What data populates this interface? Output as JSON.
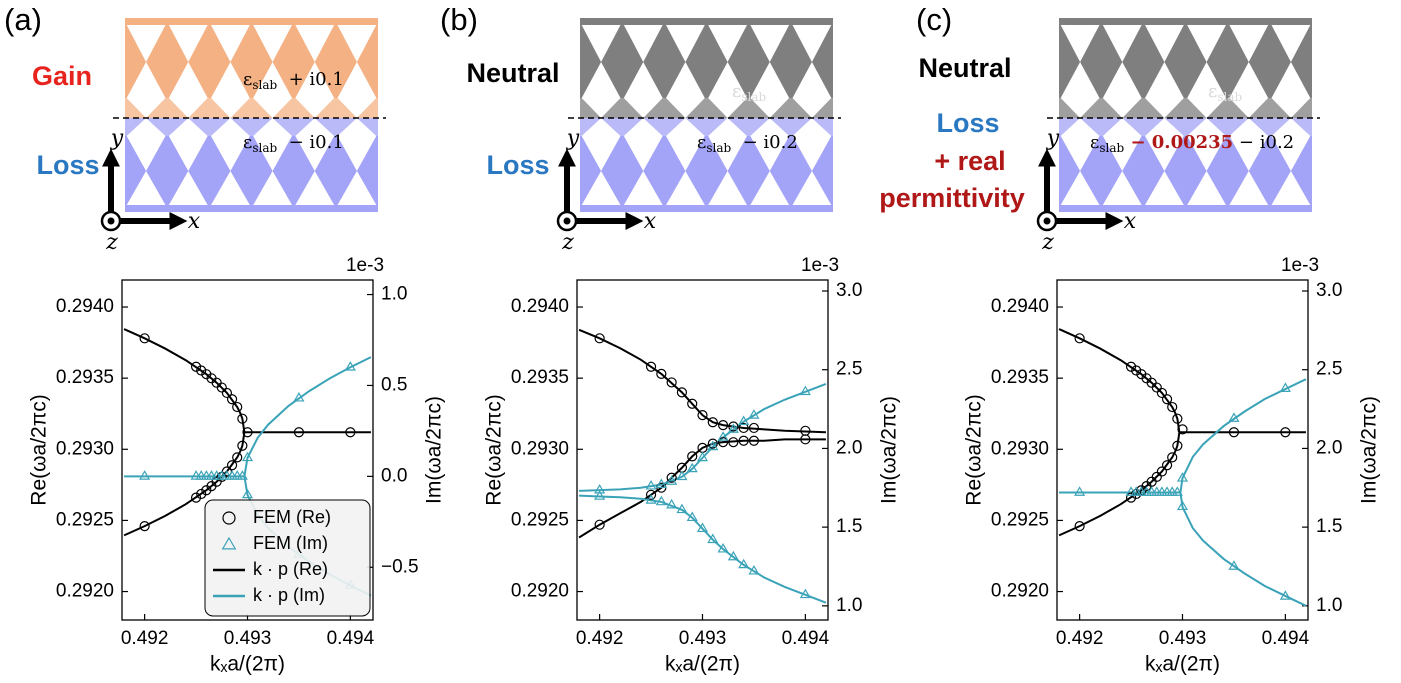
{
  "chart_data": [
    {
      "type": "line",
      "panel_label": "(a)",
      "schematic": {
        "upper_color": "#f4b183",
        "lower_color": "#a3a3f7",
        "labels": [
          {
            "text": "Gain",
            "color": "#e8231e"
          },
          {
            "text": "Loss",
            "color": "#2a78c2"
          }
        ],
        "permittivity": [
          [
            {
              "text": "ε",
              "color": "#000000"
            },
            {
              "text": "slab",
              "color": "#000000",
              "sub": true
            },
            {
              "text": "  + i0.1",
              "color": "#000000"
            }
          ],
          [
            {
              "text": "ε",
              "color": "#000000"
            },
            {
              "text": "slab",
              "color": "#000000",
              "sub": true
            },
            {
              "text": "  − i0.1",
              "color": "#000000"
            }
          ]
        ],
        "coordinate_labels": [
          "y",
          "x",
          "z"
        ]
      },
      "x_label": "kₓa/(2π)",
      "y_label": "Re(ωa/2πc)",
      "y2_label": "Im(ωa/2πc)",
      "y2_offset_label": "1e-3",
      "xlim": [
        0.49178,
        0.49422
      ],
      "xticks": [
        0.492,
        0.493,
        0.494
      ],
      "ylim": [
        0.2918,
        0.29419
      ],
      "yticks": [
        {
          "value": 0.292,
          "label": "0.2920"
        },
        0.2925,
        {
          "value": 0.293,
          "label": "0.2930"
        },
        0.2935,
        {
          "value": 0.294,
          "label": "0.2940"
        }
      ],
      "y2lim": [
        -0.79,
        1.08
      ],
      "y2ticks": [
        {
          "value": -0.5,
          "label": "−0.5"
        },
        {
          "value": 0,
          "label": "0.0"
        },
        0.5,
        {
          "value": 1,
          "label": "1.0"
        }
      ],
      "legend": "lower center",
      "series": [
        {
          "name": "FEM (Re)",
          "color": "#000000",
          "marker": "circle",
          "x": [
            0.492,
            0.4925,
            0.49255,
            0.4926,
            0.49265,
            0.4927,
            0.49275,
            0.4928,
            0.49285,
            0.4929,
            0.49295,
            0.492,
            0.4925,
            0.49255,
            0.4926,
            0.49265,
            0.4927,
            0.49275,
            0.4928,
            0.49285,
            0.4929,
            0.49295,
            0.493,
            0.4935,
            0.494
          ],
          "values": [
            0.29378,
            0.29358,
            0.293554,
            0.293528,
            0.293499,
            0.293468,
            0.293434,
            0.293396,
            0.293352,
            0.293297,
            0.293215,
            0.29246,
            0.29266,
            0.292686,
            0.292712,
            0.292741,
            0.292772,
            0.292806,
            0.292844,
            0.292888,
            0.292943,
            0.293025,
            0.29312,
            0.29312,
            0.29312
          ]
        },
        {
          "name": "FEM (Im)",
          "color": "#3ba3b8",
          "marker": "triangle",
          "axis": "y2",
          "x": [
            0.492,
            0.4925,
            0.49255,
            0.4926,
            0.49265,
            0.4927,
            0.49275,
            0.4928,
            0.49285,
            0.4929,
            0.49295,
            0.493,
            0.493,
            0.4935,
            0.4935,
            0.494,
            0.494
          ],
          "values": [
            0,
            0,
            0,
            0,
            0,
            0,
            0,
            0,
            0,
            0,
            0,
            0.102,
            -0.102,
            0.43,
            -0.43,
            0.6,
            -0.6
          ]
        },
        {
          "name": "k · p (Re)",
          "color": "#000000",
          "marker": "none",
          "x": [
            0.4918,
            0.492,
            0.4922,
            0.4924,
            0.4926,
            0.4927,
            0.4928,
            0.4929,
            0.49293,
            0.49295,
            0.49297,
            0.4942,
            0.4942,
            0.4918,
            0.492,
            0.4922,
            0.4924,
            0.4926,
            0.4927,
            0.4928,
            0.4929,
            0.49293,
            0.49295,
            0.49297
          ],
          "values": [
            0.293845,
            0.29378,
            0.293708,
            0.293626,
            0.293528,
            0.293468,
            0.293396,
            0.293297,
            0.293254,
            0.293215,
            0.29312,
            0.29312,
            null,
            0.292395,
            0.29246,
            0.292532,
            0.292614,
            0.292712,
            0.292772,
            0.292844,
            0.292943,
            0.292986,
            0.293025,
            0.29312
          ]
        },
        {
          "name": "k · p (Im)",
          "color": "#3ba3b8",
          "marker": "none",
          "axis": "y2",
          "x": [
            0.4918,
            0.49297,
            0.493,
            0.4931,
            0.4932,
            0.4934,
            0.4936,
            0.4938,
            0.494,
            0.4942,
            0.4942,
            0.49297,
            0.493,
            0.4931,
            0.4932,
            0.4934,
            0.4936,
            0.4938,
            0.494,
            0.4942
          ],
          "values": [
            0,
            0,
            0.102,
            0.213,
            0.284,
            0.388,
            0.469,
            0.539,
            0.6,
            0.656,
            null,
            0,
            -0.102,
            -0.213,
            -0.284,
            -0.388,
            -0.469,
            -0.539,
            -0.6,
            -0.656
          ]
        }
      ]
    },
    {
      "type": "line",
      "panel_label": "(b)",
      "schematic": {
        "upper_color": "#7f7f7f",
        "lower_color": "#a3a3f7",
        "labels": [
          {
            "text": "Neutral",
            "color": "#000000"
          },
          {
            "text": "Loss",
            "color": "#2a78c2"
          }
        ],
        "permittivity": [
          [
            {
              "text": "ε",
              "color": "#d9d9d9"
            },
            {
              "text": "slab",
              "color": "#d9d9d9",
              "sub": true
            }
          ],
          [
            {
              "text": "ε",
              "color": "#000000"
            },
            {
              "text": "slab",
              "color": "#000000",
              "sub": true
            },
            {
              "text": "  − i0.2",
              "color": "#000000"
            }
          ]
        ],
        "coordinate_labels": [
          "y",
          "x",
          "z"
        ]
      },
      "x_label": "kₓa/(2π)",
      "y_label": "Re(ωa/2πc)",
      "y2_label": "Im(ωa/2πc)",
      "y2_offset_label": "1e-3",
      "xlim": [
        0.49178,
        0.49422
      ],
      "xticks": [
        0.492,
        0.493,
        0.494
      ],
      "ylim": [
        0.2918,
        0.29419
      ],
      "yticks": [
        {
          "value": 0.292,
          "label": "0.2920"
        },
        0.2925,
        {
          "value": 0.293,
          "label": "0.2930"
        },
        0.2935,
        {
          "value": 0.294,
          "label": "0.2940"
        }
      ],
      "y2lim": [
        0.91,
        3.07
      ],
      "y2ticks": [
        {
          "value": 1,
          "label": "1.0"
        },
        1.5,
        {
          "value": 2,
          "label": "2.0"
        },
        2.5,
        {
          "value": 3,
          "label": "3.0"
        }
      ],
      "series": [
        {
          "color": "#000000",
          "marker": "circle",
          "x": [
            0.492,
            0.4925,
            0.4926,
            0.4927,
            0.4928,
            0.4929,
            0.493,
            0.4931,
            0.4932,
            0.4933,
            0.4934,
            0.4935,
            0.494,
            0.492,
            0.4925,
            0.4926,
            0.4927,
            0.4928,
            0.4929,
            0.493,
            0.4931,
            0.4932,
            0.4933,
            0.4934,
            0.4935,
            0.494
          ],
          "values": [
            0.29378,
            0.29358,
            0.29353,
            0.29347,
            0.2934,
            0.29332,
            0.29324,
            0.29319,
            0.29317,
            0.29316,
            0.29315,
            0.29315,
            0.29313,
            0.29247,
            0.29268,
            0.29273,
            0.2928,
            0.29287,
            0.29295,
            0.29301,
            0.29304,
            0.29305,
            0.29305,
            0.29306,
            0.29306,
            0.29307
          ]
        },
        {
          "color": "#3ba3b8",
          "marker": "triangle",
          "axis": "y2",
          "x": [
            0.492,
            0.4925,
            0.4926,
            0.4927,
            0.4928,
            0.4929,
            0.493,
            0.4931,
            0.4932,
            0.4933,
            0.4934,
            0.4935,
            0.494,
            0.492,
            0.4925,
            0.4926,
            0.4927,
            0.4928,
            0.4929,
            0.493,
            0.4931,
            0.4932,
            0.4933,
            0.4934,
            0.4935,
            0.494
          ],
          "values": [
            1.735,
            1.76,
            1.77,
            1.79,
            1.82,
            1.87,
            1.94,
            2.01,
            2.07,
            2.12,
            2.17,
            2.21,
            2.36,
            1.695,
            1.67,
            1.66,
            1.64,
            1.61,
            1.56,
            1.49,
            1.42,
            1.36,
            1.31,
            1.26,
            1.22,
            1.07
          ]
        },
        {
          "color": "#000000",
          "marker": "none",
          "x": [
            0.4918,
            0.492,
            0.4922,
            0.4924,
            0.4926,
            0.4928,
            0.4929,
            0.493,
            0.4931,
            0.4932,
            0.4934,
            0.4936,
            0.4938,
            0.4942,
            0.4942,
            0.4918,
            0.492,
            0.4922,
            0.4924,
            0.4926,
            0.4928,
            0.4929,
            0.493,
            0.4931,
            0.4932,
            0.4934,
            0.4936,
            0.4938,
            0.4942
          ],
          "values": [
            0.29384,
            0.29378,
            0.29371,
            0.29363,
            0.29353,
            0.2934,
            0.29332,
            0.29324,
            0.29319,
            0.29317,
            0.29315,
            0.29314,
            0.29313,
            0.29312,
            null,
            0.29238,
            0.29247,
            0.29255,
            0.29263,
            0.29273,
            0.29287,
            0.29295,
            0.29301,
            0.29304,
            0.29305,
            0.29306,
            0.29306,
            0.29307,
            0.29307
          ]
        },
        {
          "color": "#3ba3b8",
          "marker": "none",
          "axis": "y2",
          "x": [
            0.4918,
            0.492,
            0.4922,
            0.4924,
            0.4926,
            0.4928,
            0.4929,
            0.493,
            0.4931,
            0.4932,
            0.4934,
            0.4936,
            0.4938,
            0.494,
            0.4942,
            0.4942,
            0.4918,
            0.492,
            0.4922,
            0.4924,
            0.4926,
            0.4928,
            0.4929,
            0.493,
            0.4931,
            0.4932,
            0.4934,
            0.4936,
            0.4938,
            0.494,
            0.4942
          ],
          "values": [
            1.73,
            1.735,
            1.74,
            1.75,
            1.77,
            1.82,
            1.87,
            1.94,
            2.01,
            2.07,
            2.17,
            2.25,
            2.31,
            2.36,
            2.41,
            null,
            1.7,
            1.695,
            1.69,
            1.68,
            1.66,
            1.61,
            1.56,
            1.49,
            1.42,
            1.36,
            1.26,
            1.18,
            1.12,
            1.07,
            1.02
          ]
        }
      ]
    },
    {
      "type": "line",
      "panel_label": "(c)",
      "schematic": {
        "upper_color": "#7f7f7f",
        "lower_color": "#a3a3f7",
        "labels": [
          {
            "text": "Neutral",
            "color": "#000000"
          },
          {
            "text": "Loss",
            "color": "#2a78c2"
          },
          {
            "text": "+ real",
            "color": "#b01818"
          },
          {
            "text": "permittivity",
            "color": "#b01818"
          }
        ],
        "permittivity": [
          [
            {
              "text": "ε",
              "color": "#d9d9d9"
            },
            {
              "text": "slab",
              "color": "#d9d9d9",
              "sub": true
            }
          ],
          [
            {
              "text": "ε",
              "color": "#000000"
            },
            {
              "text": "slab",
              "color": "#000000",
              "sub": true
            },
            {
              "text": " − 0.00235",
              "color": "#b01818",
              "bold": true
            },
            {
              "text": " − i0.2",
              "color": "#000000"
            }
          ]
        ],
        "coordinate_labels": [
          "y",
          "x",
          "z"
        ]
      },
      "x_label": "kₓa/(2π)",
      "y_label": "Re(ωa/2πc)",
      "y2_label": "Im(ωa/2πc)",
      "y2_offset_label": "1e-3",
      "xlim": [
        0.49178,
        0.49422
      ],
      "xticks": [
        0.492,
        0.493,
        0.494
      ],
      "ylim": [
        0.2918,
        0.29419
      ],
      "yticks": [
        {
          "value": 0.292,
          "label": "0.2920"
        },
        0.2925,
        {
          "value": 0.293,
          "label": "0.2930"
        },
        0.2935,
        {
          "value": 0.294,
          "label": "0.2940"
        }
      ],
      "y2lim": [
        0.91,
        3.07
      ],
      "y2ticks": [
        {
          "value": 1,
          "label": "1.0"
        },
        1.5,
        {
          "value": 2,
          "label": "2.0"
        },
        2.5,
        {
          "value": 3,
          "label": "3.0"
        }
      ],
      "series": [
        {
          "color": "#000000",
          "marker": "circle",
          "x": [
            0.492,
            0.4925,
            0.49255,
            0.4926,
            0.49265,
            0.4927,
            0.49275,
            0.4928,
            0.49285,
            0.4929,
            0.49295,
            0.492,
            0.4925,
            0.49255,
            0.4926,
            0.49265,
            0.4927,
            0.49275,
            0.4928,
            0.49285,
            0.4929,
            0.49295,
            0.493,
            0.4935,
            0.494
          ],
          "values": [
            0.29378,
            0.29358,
            0.293554,
            0.293528,
            0.293499,
            0.293468,
            0.293434,
            0.293396,
            0.293352,
            0.293297,
            0.293215,
            0.29246,
            0.29266,
            0.292686,
            0.292712,
            0.292741,
            0.292772,
            0.292806,
            0.292844,
            0.292888,
            0.292943,
            0.293025,
            0.29314,
            0.29312,
            0.29312
          ]
        },
        {
          "color": "#3ba3b8",
          "marker": "triangle",
          "axis": "y2",
          "x": [
            0.492,
            0.4925,
            0.49255,
            0.4926,
            0.49265,
            0.4927,
            0.49275,
            0.4928,
            0.49285,
            0.4929,
            0.49295,
            0.493,
            0.493,
            0.4935,
            0.4935,
            0.494,
            0.494
          ],
          "values": [
            1.72,
            1.72,
            1.72,
            1.72,
            1.72,
            1.72,
            1.72,
            1.72,
            1.72,
            1.72,
            1.72,
            1.81,
            1.63,
            2.19,
            1.25,
            2.38,
            1.06
          ]
        },
        {
          "color": "#000000",
          "marker": "none",
          "x": [
            0.4918,
            0.492,
            0.4922,
            0.4924,
            0.4926,
            0.4927,
            0.4928,
            0.4929,
            0.49293,
            0.49295,
            0.49297,
            0.4942,
            0.4942,
            0.4918,
            0.492,
            0.4922,
            0.4924,
            0.4926,
            0.4927,
            0.4928,
            0.4929,
            0.49293,
            0.49295,
            0.49297
          ],
          "values": [
            0.293845,
            0.29378,
            0.293708,
            0.293626,
            0.293528,
            0.293468,
            0.293396,
            0.293297,
            0.293254,
            0.293215,
            0.29312,
            0.29312,
            null,
            0.292395,
            0.29246,
            0.292532,
            0.292614,
            0.292712,
            0.292772,
            0.292844,
            0.292943,
            0.292986,
            0.293025,
            0.29312
          ]
        },
        {
          "color": "#3ba3b8",
          "marker": "none",
          "axis": "y2",
          "x": [
            0.4918,
            0.49298,
            0.493,
            0.4931,
            0.4932,
            0.4934,
            0.4936,
            0.4938,
            0.494,
            0.4942,
            0.4942,
            0.49298,
            0.493,
            0.4931,
            0.4932,
            0.4934,
            0.4936,
            0.4938,
            0.494,
            0.4942
          ],
          "values": [
            1.72,
            1.72,
            1.812,
            1.946,
            2.026,
            2.142,
            2.233,
            2.314,
            2.377,
            2.44,
            null,
            1.72,
            1.628,
            1.494,
            1.414,
            1.298,
            1.207,
            1.126,
            1.063,
            1.0
          ]
        }
      ]
    }
  ]
}
